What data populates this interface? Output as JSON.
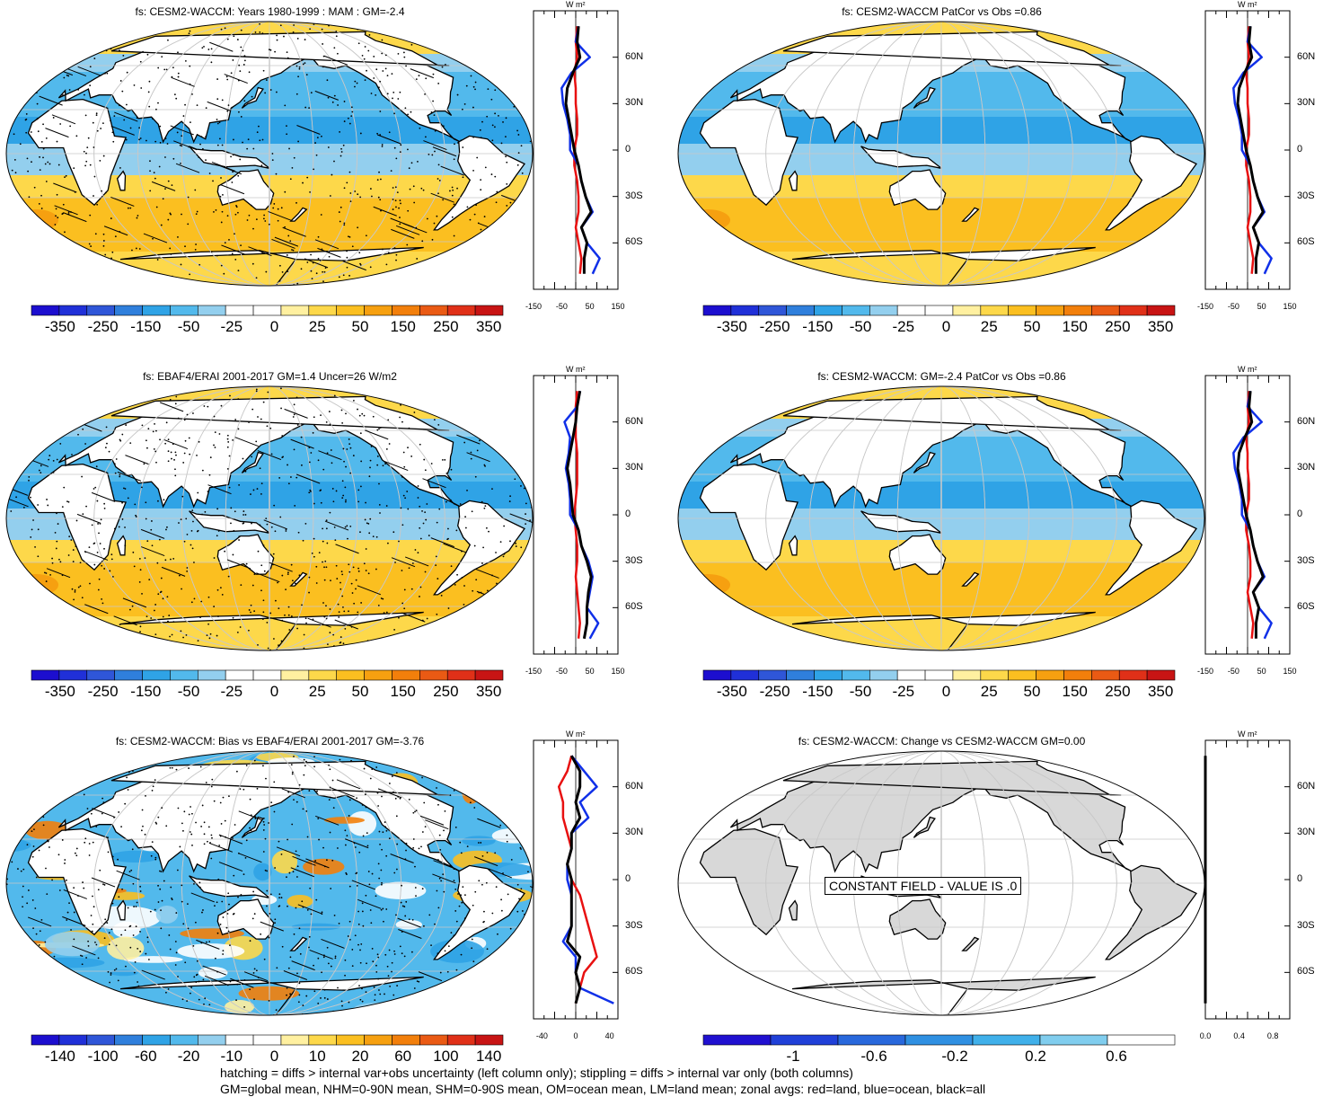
{
  "panels": [
    {
      "id": "p1",
      "title": "fs: CESM2-WACCM: Years 1980-1999 : MAM : GM=-2.4",
      "mode": "model",
      "hatch": true,
      "stipple": true,
      "bias": false,
      "colorbar_labels": [
        "-350",
        "-250",
        "-150",
        "-50",
        "-25",
        "0",
        "25",
        "50",
        "150",
        "250",
        "350"
      ],
      "zonal_x_labels": [
        "-150",
        "-50",
        "50",
        "150"
      ],
      "zonal_x_range": [
        -150,
        150
      ]
    },
    {
      "id": "p2",
      "title": "fs: CESM2-WACCM PatCor vs Obs =0.86",
      "mode": "model",
      "hatch": false,
      "stipple": false,
      "bias": false,
      "colorbar_labels": [
        "-350",
        "-250",
        "-150",
        "-50",
        "-25",
        "0",
        "25",
        "50",
        "150",
        "250",
        "350"
      ],
      "zonal_x_labels": [
        "-150",
        "-50",
        "50",
        "150"
      ],
      "zonal_x_range": [
        -150,
        150
      ]
    },
    {
      "id": "p3",
      "title": "fs: EBAF4/ERAI 2001-2017 GM=1.4 Uncer=26 W/m2",
      "mode": "obs",
      "hatch": true,
      "stipple": true,
      "bias": false,
      "colorbar_labels": [
        "-350",
        "-250",
        "-150",
        "-50",
        "-25",
        "0",
        "25",
        "50",
        "150",
        "250",
        "350"
      ],
      "zonal_x_labels": [
        "-150",
        "-50",
        "50",
        "150"
      ],
      "zonal_x_range": [
        -150,
        150
      ]
    },
    {
      "id": "p4",
      "title": "fs: CESM2-WACCM: GM=-2.4 PatCor vs Obs =0.86",
      "mode": "model",
      "hatch": false,
      "stipple": false,
      "bias": false,
      "colorbar_labels": [
        "-350",
        "-250",
        "-150",
        "-50",
        "-25",
        "0",
        "25",
        "50",
        "150",
        "250",
        "350"
      ],
      "zonal_x_labels": [
        "-150",
        "-50",
        "50",
        "150"
      ],
      "zonal_x_range": [
        -150,
        150
      ]
    },
    {
      "id": "p5",
      "title": "fs: CESM2-WACCM: Bias vs EBAF4/ERAI 2001-2017 GM=-3.76",
      "mode": "bias",
      "hatch": true,
      "stipple": true,
      "bias": true,
      "colorbar_labels": [
        "-140",
        "-100",
        "-60",
        "-20",
        "-10",
        "0",
        "10",
        "20",
        "60",
        "100",
        "140"
      ],
      "zonal_x_labels": [
        "-40",
        "0",
        "40"
      ],
      "zonal_x_range": [
        -50,
        50
      ]
    },
    {
      "id": "p6",
      "title": "fs: CESM2-WACCM: Change vs CESM2-WACCM GM=0.00",
      "mode": "constant",
      "hatch": false,
      "stipple": false,
      "bias": false,
      "constant_text": "CONSTANT FIELD - VALUE IS .0",
      "colorbar_labels": [
        "-1",
        "-0.6",
        "-0.2",
        "0.2",
        "0.6"
      ],
      "zonal_x_labels": [
        "0.0",
        "0.4",
        "0.8"
      ],
      "zonal_x_range": [
        0,
        1
      ]
    }
  ],
  "lat_labels": [
    "60N",
    "30N",
    "0",
    "30S",
    "60S"
  ],
  "unit_label": "W m²",
  "colors": {
    "diverging": [
      "#1c0ecf",
      "#2030d8",
      "#2f56d8",
      "#2f7fdc",
      "#2fa3e6",
      "#52b9ec",
      "#93cfee",
      "#ffffff",
      "#ffffff",
      "#fff0a0",
      "#fdd84a",
      "#fbbf20",
      "#f6a010",
      "#f27f0b",
      "#ea5a14",
      "#e03018",
      "#c81414"
    ],
    "small_scale": [
      "#2010d0",
      "#2040d8",
      "#2868dc",
      "#2f90e2",
      "#40b0ea",
      "#80cdee",
      "#ffffff"
    ],
    "land": "#ffffff",
    "land_constant": "#d8d8d8",
    "grid": "#c8c8c8",
    "series_land": "#e81010",
    "series_ocean": "#1030e8",
    "series_all": "#000000"
  },
  "chart_data": [
    {
      "type": "line",
      "panel": "p1",
      "x_label": "W m2",
      "xlim": [
        -150,
        150
      ],
      "lat": [
        80,
        70,
        60,
        50,
        40,
        30,
        20,
        10,
        0,
        -10,
        -20,
        -30,
        -40,
        -50,
        -60,
        -70,
        -80
      ],
      "series": [
        {
          "name": "land",
          "values": [
            5,
            0,
            5,
            -5,
            0,
            0,
            5,
            5,
            -5,
            -5,
            5,
            10,
            10,
            0,
            10,
            20,
            15
          ]
        },
        {
          "name": "ocean",
          "values": [
            10,
            0,
            50,
            -15,
            -50,
            -45,
            -30,
            -20,
            -20,
            10,
            20,
            35,
            60,
            20,
            40,
            85,
            60
          ]
        },
        {
          "name": "all",
          "values": [
            10,
            5,
            15,
            -10,
            -30,
            -35,
            -25,
            -15,
            -5,
            10,
            20,
            35,
            55,
            20,
            40,
            30,
            30
          ]
        }
      ]
    },
    {
      "type": "line",
      "panel": "p2",
      "x_label": "W m2",
      "xlim": [
        -150,
        150
      ],
      "lat": [
        80,
        70,
        60,
        50,
        40,
        30,
        20,
        10,
        0,
        -10,
        -20,
        -30,
        -40,
        -50,
        -60,
        -70,
        -80
      ],
      "series": [
        {
          "name": "land",
          "values": [
            5,
            0,
            5,
            -5,
            0,
            0,
            5,
            5,
            -5,
            -5,
            5,
            10,
            10,
            0,
            10,
            20,
            15
          ]
        },
        {
          "name": "ocean",
          "values": [
            10,
            0,
            50,
            -15,
            -50,
            -45,
            -30,
            -20,
            -20,
            10,
            20,
            35,
            60,
            20,
            40,
            85,
            60
          ]
        },
        {
          "name": "all",
          "values": [
            10,
            5,
            15,
            -10,
            -30,
            -35,
            -25,
            -15,
            -5,
            10,
            20,
            35,
            55,
            20,
            40,
            30,
            30
          ]
        }
      ]
    },
    {
      "type": "line",
      "panel": "p3",
      "x_label": "W m2",
      "xlim": [
        -150,
        150
      ],
      "lat": [
        80,
        70,
        60,
        50,
        40,
        30,
        20,
        10,
        0,
        -10,
        -20,
        -30,
        -40,
        -50,
        -60,
        -70,
        -80
      ],
      "series": [
        {
          "name": "land",
          "values": [
            5,
            0,
            0,
            0,
            5,
            5,
            5,
            0,
            -5,
            0,
            5,
            5,
            0,
            5,
            10,
            15,
            10
          ]
        },
        {
          "name": "ocean",
          "values": [
            15,
            5,
            -40,
            -20,
            -25,
            -35,
            -25,
            -20,
            -20,
            10,
            20,
            45,
            60,
            50,
            40,
            80,
            50
          ]
        },
        {
          "name": "all",
          "values": [
            15,
            5,
            0,
            -10,
            -20,
            -30,
            -20,
            -15,
            -10,
            10,
            20,
            40,
            55,
            45,
            40,
            40,
            30
          ]
        }
      ]
    },
    {
      "type": "line",
      "panel": "p4",
      "x_label": "W m2",
      "xlim": [
        -150,
        150
      ],
      "lat": [
        80,
        70,
        60,
        50,
        40,
        30,
        20,
        10,
        0,
        -10,
        -20,
        -30,
        -40,
        -50,
        -60,
        -70,
        -80
      ],
      "series": [
        {
          "name": "land",
          "values": [
            5,
            0,
            5,
            -5,
            0,
            0,
            5,
            5,
            -5,
            -5,
            5,
            10,
            10,
            0,
            10,
            20,
            15
          ]
        },
        {
          "name": "ocean",
          "values": [
            10,
            0,
            50,
            -15,
            -50,
            -45,
            -30,
            -20,
            -20,
            10,
            20,
            35,
            60,
            20,
            40,
            85,
            60
          ]
        },
        {
          "name": "all",
          "values": [
            10,
            5,
            15,
            -10,
            -30,
            -35,
            -25,
            -15,
            -5,
            10,
            20,
            35,
            55,
            20,
            40,
            30,
            30
          ]
        }
      ]
    },
    {
      "type": "line",
      "panel": "p5",
      "x_label": "W m2",
      "xlim": [
        -50,
        50
      ],
      "lat": [
        80,
        70,
        60,
        50,
        40,
        30,
        20,
        10,
        0,
        -10,
        -20,
        -30,
        -40,
        -50,
        -60,
        -70,
        -80
      ],
      "series": [
        {
          "name": "land",
          "values": [
            -5,
            -10,
            -20,
            -15,
            -15,
            -10,
            -5,
            -10,
            -5,
            5,
            10,
            15,
            20,
            25,
            10,
            5,
            0
          ]
        },
        {
          "name": "ocean",
          "values": [
            -5,
            10,
            25,
            5,
            15,
            -5,
            -5,
            -10,
            -10,
            -5,
            -5,
            -5,
            -15,
            0,
            0,
            5,
            45
          ]
        },
        {
          "name": "all",
          "values": [
            -5,
            5,
            5,
            0,
            5,
            -5,
            -5,
            -10,
            -5,
            -5,
            -5,
            -5,
            -10,
            5,
            0,
            5,
            0
          ]
        }
      ]
    },
    {
      "type": "line",
      "panel": "p6",
      "x_label": "W m2",
      "xlim": [
        0,
        1
      ],
      "lat": [
        80,
        -80
      ],
      "series": [
        {
          "name": "all",
          "values": [
            0,
            0
          ]
        }
      ]
    }
  ],
  "footer": [
    "hatching = diffs > internal var+obs uncertainty (left column only); stippling = diffs > internal var only (both columns)",
    "GM=global mean, NHM=0-90N mean, SHM=0-90S mean, OM=ocean mean, LM=land mean; zonal avgs: red=land, blue=ocean, black=all"
  ]
}
